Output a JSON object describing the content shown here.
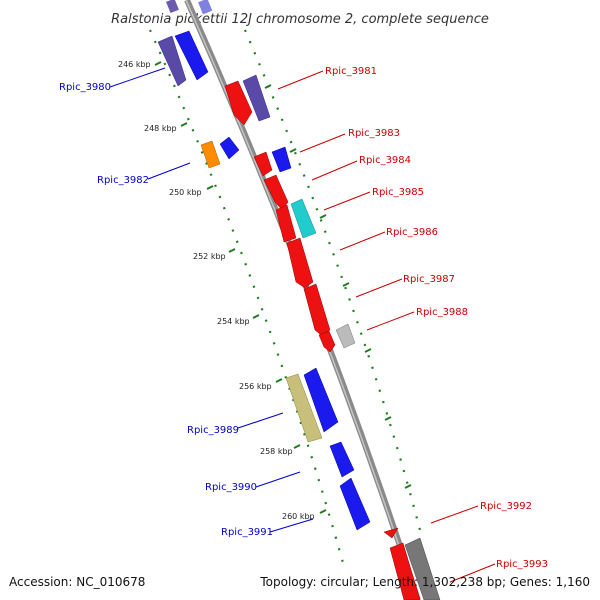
{
  "title": "Ralstonia pickettii 12J chromosome 2, complete sequence",
  "footer": {
    "accession": "Accession: NC_010678",
    "topology": "Topology: circular; Length: 1,302,238 bp; Genes: 1,160"
  },
  "colors": {
    "backbone": "#8a8a8a",
    "ruler": "#1e7d1e",
    "forward_label": "#0000cc",
    "reverse_label": "#cc0000"
  },
  "ruler_labels": [
    "246 kbp",
    "248 kbp",
    "250 kbp",
    "252 kbp",
    "254 kbp",
    "256 kbp",
    "258 kbp",
    "260 kbp"
  ],
  "genes": [
    {
      "name": "Rpic_3980",
      "strand": "forward",
      "color": "#1a1aee"
    },
    {
      "name": "Rpic_3981",
      "strand": "reverse",
      "color": "#ee1111"
    },
    {
      "name": "Rpic_3982",
      "strand": "forward",
      "color": "#1a1aee"
    },
    {
      "name": "Rpic_3983",
      "strand": "reverse",
      "color": "#1a1aee"
    },
    {
      "name": "Rpic_3984",
      "strand": "reverse",
      "color": "#ee1111"
    },
    {
      "name": "Rpic_3985",
      "strand": "reverse",
      "color": "#22cccc"
    },
    {
      "name": "Rpic_3986",
      "strand": "reverse",
      "color": "#ee1111"
    },
    {
      "name": "Rpic_3987",
      "strand": "reverse",
      "color": "#ee1111"
    },
    {
      "name": "Rpic_3988",
      "strand": "reverse",
      "color": "#bbbbbb"
    },
    {
      "name": "Rpic_3989",
      "strand": "forward",
      "color": "#1a1aee"
    },
    {
      "name": "Rpic_3990",
      "strand": "forward",
      "color": "#1a1aee"
    },
    {
      "name": "Rpic_3991",
      "strand": "forward",
      "color": "#1a1aee"
    },
    {
      "name": "Rpic_3992",
      "strand": "reverse",
      "color": "#ee1111"
    },
    {
      "name": "Rpic_3993",
      "strand": "reverse",
      "color": "#777777"
    }
  ]
}
